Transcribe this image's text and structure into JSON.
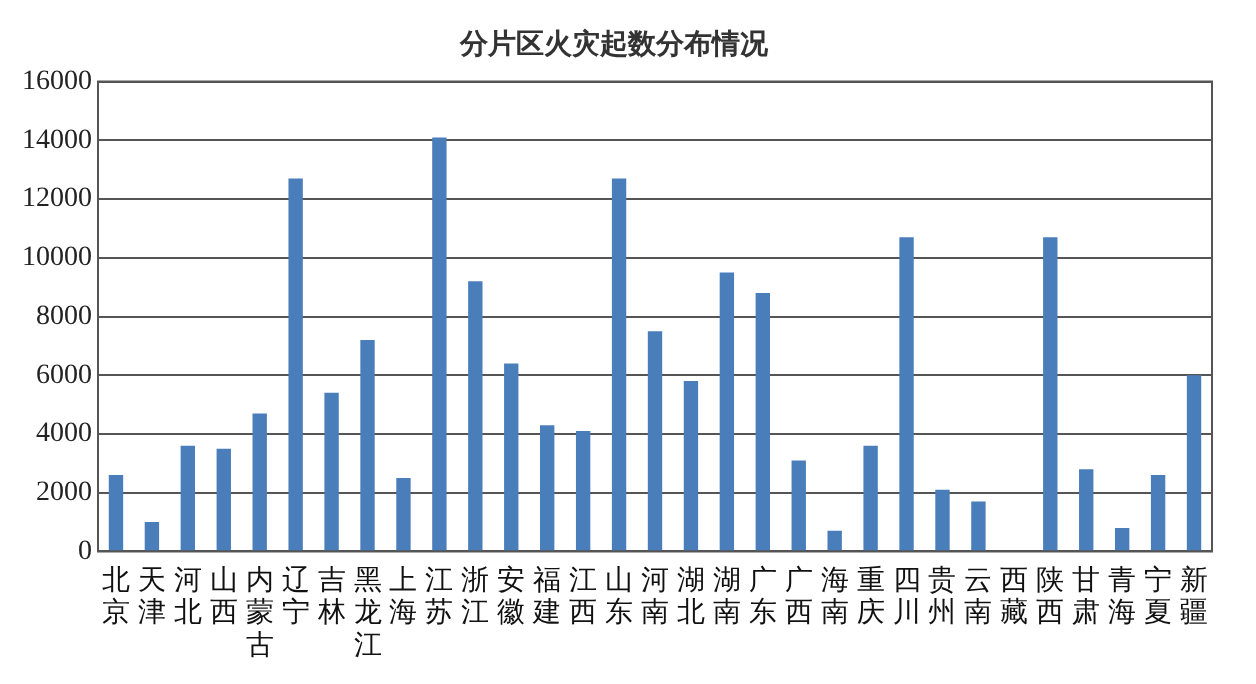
{
  "chart_data": {
    "type": "bar",
    "title": "分片区火灾起数分布情况",
    "categories": [
      "北京",
      "天津",
      "河北",
      "山西",
      "内蒙古",
      "辽宁",
      "吉林",
      "黑龙江",
      "上海",
      "江苏",
      "浙江",
      "安徽",
      "福建",
      "江西",
      "山东",
      "河南",
      "湖北",
      "湖南",
      "广东",
      "广西",
      "海南",
      "重庆",
      "四川",
      "贵州",
      "云南",
      "西藏",
      "陕西",
      "甘肃",
      "青海",
      "宁夏",
      "新疆"
    ],
    "values": [
      2600,
      1000,
      3600,
      3500,
      4700,
      12700,
      5400,
      7200,
      2500,
      14100,
      9200,
      6400,
      4300,
      4100,
      12700,
      7500,
      5800,
      9500,
      8800,
      3100,
      700,
      3600,
      10700,
      2100,
      1700,
      0,
      10700,
      2800,
      800,
      2600,
      6000
    ],
    "color": "#4a7ebb",
    "ylim": [
      0,
      16000
    ],
    "yticks": [
      0,
      2000,
      4000,
      6000,
      8000,
      10000,
      12000,
      14000,
      16000
    ],
    "grid": "y",
    "legend": false
  }
}
